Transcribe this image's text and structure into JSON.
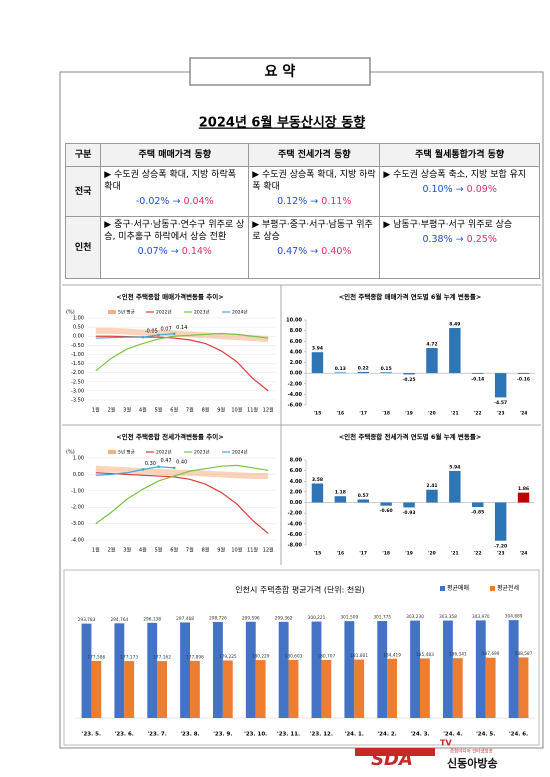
{
  "summary_label": "요 약",
  "title": "2024년 6월 부동산시장 동향",
  "table": {
    "arrow": "→",
    "header": [
      "구분",
      "주택 매매가격 동향",
      "주택 전세가격 동향",
      "주택 월세통합가격 동향"
    ],
    "rows": [
      {
        "region": "전국",
        "cells": [
          {
            "text": "▶ 수도권 상승폭 확대, 지방 하락폭 확대",
            "from": "-0.02%",
            "to": "0.04%"
          },
          {
            "text": "▶ 수도권 상승폭 확대, 지방 하락폭 확대",
            "from": "0.12%",
            "to": "0.11%"
          },
          {
            "text": "▶ 수도권 상승폭 축소, 지방 보합 유지",
            "from": "0.10%",
            "to": "0.09%"
          }
        ]
      },
      {
        "region": "인천",
        "cells": [
          {
            "text": "▶ 중구·서구·남동구·연수구 위주로 상승, 미추홀구 하락에서 상승 전환",
            "from": "0.07%",
            "to": "0.14%"
          },
          {
            "text": "▶ 부평구·중구·서구·남동구 위주로 상승",
            "from": "0.47%",
            "to": "0.40%"
          },
          {
            "text": "▶ 남동구·부평구·서구 위주로 상승",
            "from": "0.38%",
            "to": "0.25%"
          }
        ]
      }
    ]
  },
  "chart_data": [
    {
      "type": "line",
      "title": "<인천 주택종합 매매가격변동률 추이>",
      "y_label": "(%)",
      "categories": [
        "1월",
        "2월",
        "3월",
        "4월",
        "5월",
        "6월",
        "7월",
        "8월",
        "9월",
        "10월",
        "11월",
        "12월"
      ],
      "ylim": [
        -3.5,
        1
      ],
      "yticks": [
        {
          "value": 1,
          "label": "1.00"
        },
        {
          "value": 0.5,
          "label": "0.50"
        },
        {
          "value": 0,
          "label": "0.00"
        },
        {
          "value": -0.5,
          "label": "-0.50"
        },
        {
          "value": -1,
          "label": "-1.00"
        },
        {
          "value": -1.5,
          "label": "-1.50"
        },
        {
          "value": -2,
          "label": "-2.00"
        },
        {
          "value": -2.5,
          "label": "-2.50"
        },
        {
          "value": -3,
          "label": "-3.00"
        },
        {
          "value": -3.5,
          "label": "-3.50"
        }
      ],
      "series": [
        {
          "name": "5년 평균",
          "color": "#f4b183",
          "line_width": 6,
          "values": [
            0.3,
            0.3,
            0.25,
            0.2,
            0.2,
            0.15,
            0.1,
            0.05,
            0.0,
            -0.05,
            -0.1,
            -0.15
          ]
        },
        {
          "name": "2022년",
          "color": "#e03c3c",
          "values": [
            0.0,
            0.0,
            -0.02,
            -0.05,
            -0.05,
            -0.1,
            -0.2,
            -0.4,
            -0.8,
            -1.4,
            -2.3,
            -3.0
          ]
        },
        {
          "name": "2023년",
          "color": "#7cc043",
          "values": [
            -1.9,
            -1.2,
            -0.7,
            -0.4,
            -0.15,
            0.0,
            0.05,
            0.1,
            0.15,
            0.1,
            0.0,
            -0.1
          ]
        },
        {
          "name": "2024년",
          "color": "#3fa7d6",
          "values": [
            -0.1,
            -0.08,
            -0.05,
            -0.05,
            0.07,
            0.14,
            null,
            null,
            null,
            null,
            null,
            null
          ],
          "value_labels": [
            null,
            null,
            null,
            "-0.05",
            "0.07",
            "0.14",
            null,
            null,
            null,
            null,
            null,
            null
          ]
        }
      ]
    },
    {
      "type": "bar",
      "title": "<인천 주택종합 매매가격 연도별 6월 누계 변동률>",
      "categories": [
        "'15",
        "'16",
        "'17",
        "'18",
        "'19",
        "'20",
        "'21",
        "'22",
        "'23",
        "'24"
      ],
      "values": [
        3.94,
        0.13,
        0.22,
        0.15,
        -0.25,
        4.72,
        8.49,
        -0.14,
        -4.57,
        -0.16
      ],
      "value_labels": [
        "3.94",
        "0.13",
        "0.22",
        "0.15",
        "-0.25",
        "4.72",
        "8.49",
        "-0.14",
        "-4.57",
        "-0.16"
      ],
      "colors": [
        "#2e75b6",
        "#2e75b6",
        "#2e75b6",
        "#2e75b6",
        "#2e75b6",
        "#2e75b6",
        "#2e75b6",
        "#2e75b6",
        "#2e75b6",
        "#2e75b6"
      ],
      "ylim": [
        -6,
        10
      ],
      "yticks": [
        {
          "value": 10,
          "label": "10.00"
        },
        {
          "value": 8,
          "label": "8.00"
        },
        {
          "value": 6,
          "label": "6.00"
        },
        {
          "value": 4,
          "label": "4.00"
        },
        {
          "value": 2,
          "label": "2.00"
        },
        {
          "value": 0,
          "label": "0.00"
        },
        {
          "value": -2,
          "label": "-2.00"
        },
        {
          "value": -4,
          "label": "-4.00"
        },
        {
          "value": -6,
          "label": "-6.00"
        }
      ]
    },
    {
      "type": "line",
      "title": "<인천 주택종합 전세가격변동률 추이>",
      "y_label": "(%)",
      "categories": [
        "1월",
        "2월",
        "3월",
        "4월",
        "5월",
        "6월",
        "7월",
        "8월",
        "9월",
        "10월",
        "11월",
        "12월"
      ],
      "ylim": [
        -4,
        1
      ],
      "yticks": [
        {
          "value": 1,
          "label": "1.00"
        },
        {
          "value": 0,
          "label": "0.00"
        },
        {
          "value": -1,
          "label": "-1.00"
        },
        {
          "value": -2,
          "label": "-2.00"
        },
        {
          "value": -3,
          "label": "-3.00"
        },
        {
          "value": -4,
          "label": "-4.00"
        }
      ],
      "series": [
        {
          "name": "5년 평균",
          "color": "#f4b183",
          "line_width": 6,
          "values": [
            0.35,
            0.3,
            0.25,
            0.2,
            0.15,
            0.1,
            0.1,
            0.05,
            0.0,
            -0.05,
            -0.1,
            -0.1
          ]
        },
        {
          "name": "2022년",
          "color": "#e03c3c",
          "values": [
            0.1,
            0.05,
            0.0,
            -0.05,
            -0.1,
            -0.15,
            -0.3,
            -0.6,
            -1.1,
            -1.8,
            -2.8,
            -3.6
          ]
        },
        {
          "name": "2023년",
          "color": "#7cc043",
          "values": [
            -3.0,
            -2.3,
            -1.5,
            -0.9,
            -0.4,
            -0.1,
            0.2,
            0.35,
            0.5,
            0.55,
            0.4,
            0.25
          ]
        },
        {
          "name": "2024년",
          "color": "#3fa7d6",
          "values": [
            -0.05,
            0.0,
            0.1,
            0.3,
            0.47,
            0.4,
            null,
            null,
            null,
            null,
            null,
            null
          ],
          "value_labels": [
            null,
            null,
            null,
            "0.30",
            "0.47",
            "0.40",
            null,
            null,
            null,
            null,
            null,
            null
          ]
        }
      ]
    },
    {
      "type": "bar",
      "title": "<인천 주택종합 전세가격 연도별 6월 누계 변동률>",
      "categories": [
        "'15",
        "'16",
        "'17",
        "'18",
        "'19",
        "'20",
        "'21",
        "'22",
        "'23",
        "'24"
      ],
      "values": [
        3.58,
        1.18,
        0.57,
        -0.6,
        -0.93,
        2.41,
        5.94,
        -0.85,
        -7.2,
        1.86
      ],
      "value_labels": [
        "3.58",
        "1.18",
        "0.57",
        "-0.60",
        "-0.93",
        "2.41",
        "5.94",
        "-0.85",
        "-7.20",
        "1.86"
      ],
      "colors": [
        "#2e75b6",
        "#2e75b6",
        "#2e75b6",
        "#2e75b6",
        "#2e75b6",
        "#2e75b6",
        "#2e75b6",
        "#2e75b6",
        "#2e75b6",
        "#c00000"
      ],
      "ylim": [
        -8,
        8
      ],
      "yticks": [
        {
          "value": 8,
          "label": "8.00"
        },
        {
          "value": 6,
          "label": "6.00"
        },
        {
          "value": 4,
          "label": "4.00"
        },
        {
          "value": 2,
          "label": "2.00"
        },
        {
          "value": 0,
          "label": "0.00"
        },
        {
          "value": -2,
          "label": "-2.00"
        },
        {
          "value": -4,
          "label": "-4.00"
        },
        {
          "value": -6,
          "label": "-6.00"
        },
        {
          "value": -8,
          "label": "-8.00"
        }
      ]
    },
    {
      "type": "grouped_bar",
      "title": "인천시 주택종합 평균가격 (단위: 천원)",
      "legend": "top-right",
      "categories": [
        "'23. 5.",
        "'23. 6.",
        "'23. 7.",
        "'23. 8.",
        "'23. 9.",
        "'23. 10.",
        "'23. 11.",
        "'23. 12.",
        "'24. 1.",
        "'24. 2.",
        "'24. 3.",
        "'24. 4.",
        "'24. 5.",
        "'24. 6."
      ],
      "ylim": [
        0,
        330000
      ],
      "series": [
        {
          "name": "평균매매",
          "color": "#4472c4",
          "values": [
            293783,
            294764,
            296138,
            297468,
            298726,
            299596,
            299362,
            300221,
            301509,
            301775,
            303230,
            303358,
            303970,
            304689
          ],
          "value_labels": [
            "293,783",
            "294,764",
            "296,138",
            "297,468",
            "298,726",
            "299,596",
            "299,362",
            "300,221",
            "301,509",
            "301,775",
            "303,230",
            "303,358",
            "303,970",
            "304,689"
          ]
        },
        {
          "name": "평균전세",
          "color": "#ed7d31",
          "values": [
            177586,
            177173,
            177162,
            177896,
            179225,
            180229,
            180603,
            180707,
            181801,
            184419,
            185483,
            186341,
            187699,
            188587
          ],
          "value_labels": [
            "177,586",
            "177,173",
            "177,162",
            "177,896",
            "179,225",
            "180,229",
            "180,603",
            "180,707",
            "181,801",
            "184,419",
            "185,483",
            "186,341",
            "187,699",
            "188,587"
          ]
        }
      ]
    }
  ],
  "footer": {
    "logo": "SDA",
    "logo_tv": "TV",
    "tagline": "종합미디어 인터넷방송",
    "name": "신동아방송"
  }
}
